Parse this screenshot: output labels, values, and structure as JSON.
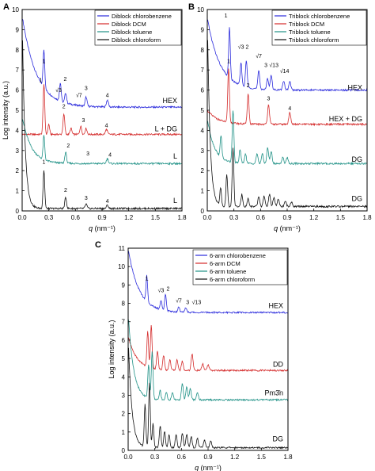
{
  "chart_data": [
    {
      "panel_label": "A",
      "type": "line",
      "xlabel_q": "q",
      "xlabel_unit": " (nm⁻¹)",
      "ylabel": "Log intensity (a.u.)",
      "xlim": [
        0,
        1.8
      ],
      "ylim": [
        0,
        10
      ],
      "xticks": [
        "0.0",
        "0.3",
        "0.6",
        "0.9",
        "1.2",
        "1.5",
        "1.8"
      ],
      "yticks": [
        "0",
        "1",
        "2",
        "3",
        "4",
        "5",
        "6",
        "7",
        "8",
        "9",
        "10"
      ],
      "legend_position": "top-right",
      "series": [
        {
          "name": "Diblock chlorobenzene",
          "color": "#2a2adc",
          "base": 5.15,
          "phase_label": "HEX",
          "start": 9.7,
          "decay": 0.16,
          "peaks": [
            [
              0.245,
              1.9
            ],
            [
              0.43,
              0.9
            ],
            [
              0.49,
              0.5
            ],
            [
              0.72,
              0.45
            ],
            [
              0.96,
              0.35
            ]
          ],
          "annotations": [
            {
              "text": "1",
              "q": 0.245,
              "y": 7.35
            },
            {
              "text": "2",
              "q": 0.485,
              "y": 6.45
            },
            {
              "text": "√3",
              "q": 0.41,
              "y": 5.9
            },
            {
              "text": "√7",
              "q": 0.64,
              "y": 5.65
            },
            {
              "text": "3",
              "q": 0.72,
              "y": 6.0
            },
            {
              "text": "4",
              "q": 0.96,
              "y": 5.65
            }
          ]
        },
        {
          "name": "Diblock DCM",
          "color": "#d42a2a",
          "base": 3.8,
          "phase_label": "L + DG",
          "start": 3.8,
          "decay": 0.1,
          "peaks": [
            [
              0.245,
              2.5
            ],
            [
              0.3,
              0.5
            ],
            [
              0.47,
              1.0
            ],
            [
              0.55,
              0.3
            ],
            [
              0.66,
              0.4
            ],
            [
              0.72,
              0.3
            ],
            [
              0.95,
              0.25
            ]
          ],
          "annotations": [
            {
              "text": "1",
              "q": 0.21,
              "y": 6.4
            },
            {
              "text": "2",
              "q": 0.47,
              "y": 5.1
            },
            {
              "text": "3",
              "q": 0.69,
              "y": 4.4
            },
            {
              "text": "4",
              "q": 0.95,
              "y": 4.15
            }
          ]
        },
        {
          "name": "Diblock toluene",
          "color": "#1f9186",
          "base": 2.35,
          "phase_label": "L",
          "start": 4.7,
          "decay": 0.1,
          "peaks": [
            [
              0.245,
              1.2
            ],
            [
              0.49,
              0.55
            ],
            [
              0.96,
              0.25
            ]
          ],
          "annotations": [
            {
              "text": "2",
              "q": 0.52,
              "y": 3.15
            },
            {
              "text": "3",
              "q": 0.74,
              "y": 2.75
            },
            {
              "text": "4",
              "q": 0.99,
              "y": 2.7
            }
          ]
        },
        {
          "name": "Diblock chloroform",
          "color": "#111111",
          "base": 0.12,
          "phase_label": "L",
          "start": 10.0,
          "decay": 0.03,
          "peaks": [
            [
              0.245,
              1.9
            ],
            [
              0.49,
              0.55
            ],
            [
              0.72,
              0.22
            ],
            [
              0.96,
              0.16
            ]
          ],
          "annotations": [
            {
              "text": "1",
              "q": 0.245,
              "y": 2.35
            },
            {
              "text": "2",
              "q": 0.49,
              "y": 0.95
            },
            {
              "text": "3",
              "q": 0.72,
              "y": 0.55
            },
            {
              "text": "4",
              "q": 0.96,
              "y": 0.4
            }
          ]
        }
      ],
      "phase_label_y": [
        5.35,
        3.95,
        2.6,
        0.4
      ]
    },
    {
      "panel_label": "B",
      "type": "line",
      "xlabel_q": "q",
      "xlabel_unit": " (nm⁻¹)",
      "ylabel": "",
      "xlim": [
        0,
        1.8
      ],
      "ylim": [
        0,
        10
      ],
      "xticks": [
        "0.0",
        "0.3",
        "0.6",
        "0.9",
        "1.2",
        "1.5",
        "1.8"
      ],
      "yticks": [
        "0",
        "1",
        "2",
        "3",
        "4",
        "5",
        "6",
        "7",
        "8",
        "9",
        "10"
      ],
      "legend_position": "top-right",
      "series": [
        {
          "name": "Triblock chlorobenzene",
          "color": "#2a2adc",
          "base": 6.0,
          "phase_label": "HEX",
          "start": 9.6,
          "decay": 0.14,
          "peaks": [
            [
              0.25,
              2.5
            ],
            [
              0.38,
              1.1
            ],
            [
              0.44,
              1.3
            ],
            [
              0.58,
              0.9
            ],
            [
              0.68,
              0.55
            ],
            [
              0.72,
              0.7
            ],
            [
              0.86,
              0.45
            ],
            [
              0.93,
              0.4
            ]
          ],
          "annotations": [
            {
              "text": "1",
              "q": 0.21,
              "y": 9.6
            },
            {
              "text": "√3",
              "q": 0.38,
              "y": 8.05
            },
            {
              "text": "2",
              "q": 0.45,
              "y": 8.05
            },
            {
              "text": "√7",
              "q": 0.58,
              "y": 7.6
            },
            {
              "text": "3",
              "q": 0.66,
              "y": 7.15
            },
            {
              "text": "√13",
              "q": 0.75,
              "y": 7.15
            },
            {
              "text": "√14",
              "q": 0.87,
              "y": 6.85
            }
          ]
        },
        {
          "name": "Triblock DCM",
          "color": "#d42a2a",
          "base": 4.3,
          "phase_label": "HEX + DG",
          "start": 5.0,
          "decay": 0.12,
          "peaks": [
            [
              0.24,
              2.7
            ],
            [
              0.46,
              1.5
            ],
            [
              0.69,
              1.0
            ],
            [
              0.93,
              0.6
            ]
          ],
          "annotations": [
            {
              "text": "1",
              "q": 0.24,
              "y": 7.35
            },
            {
              "text": "2",
              "q": 0.46,
              "y": 6.15
            },
            {
              "text": "3",
              "q": 0.69,
              "y": 5.5
            },
            {
              "text": "4",
              "q": 0.93,
              "y": 5.0
            }
          ]
        },
        {
          "name": "Triblock toluene",
          "color": "#1f9186",
          "base": 2.35,
          "phase_label": "DG",
          "start": 4.6,
          "decay": 0.08,
          "peaks": [
            [
              0.155,
              1.1
            ],
            [
              0.29,
              2.6
            ],
            [
              0.37,
              0.7
            ],
            [
              0.43,
              0.5
            ],
            [
              0.56,
              0.5
            ],
            [
              0.62,
              0.5
            ],
            [
              0.68,
              0.8
            ],
            [
              0.72,
              0.6
            ],
            [
              0.85,
              0.3
            ],
            [
              0.9,
              0.3
            ]
          ],
          "annotations": []
        },
        {
          "name": "Triblock chloroform",
          "color": "#111111",
          "base": 0.22,
          "phase_label": "DG",
          "start": 10.0,
          "decay": 0.03,
          "peaks": [
            [
              0.15,
              0.9
            ],
            [
              0.22,
              1.6
            ],
            [
              0.29,
              2.9
            ],
            [
              0.39,
              0.6
            ],
            [
              0.46,
              0.4
            ],
            [
              0.58,
              0.5
            ],
            [
              0.64,
              0.5
            ],
            [
              0.7,
              0.6
            ],
            [
              0.75,
              0.45
            ],
            [
              0.8,
              0.35
            ],
            [
              0.88,
              0.25
            ],
            [
              0.95,
              0.2
            ]
          ],
          "annotations": []
        }
      ],
      "phase_label_y": [
        6.0,
        4.45,
        2.45,
        0.5
      ]
    },
    {
      "panel_label": "C",
      "type": "line",
      "xlabel_q": "q",
      "xlabel_unit": " (nm⁻¹)",
      "ylabel": "Log intensity (a.u.)",
      "xlim": [
        0,
        1.8
      ],
      "ylim": [
        0,
        11
      ],
      "xticks": [
        "0.0",
        "0.3",
        "0.6",
        "0.9",
        "1.2",
        "1.5",
        "1.8"
      ],
      "yticks": [
        "0",
        "1",
        "2",
        "3",
        "4",
        "5",
        "6",
        "7",
        "8",
        "9",
        "10",
        "11"
      ],
      "legend_position": "top-right",
      "series": [
        {
          "name": "6-arm chlorobenzene",
          "color": "#2a2adc",
          "base": 7.5,
          "phase_label": "HEX",
          "start": 11.0,
          "decay": 0.12,
          "peaks": [
            [
              0.21,
              1.4
            ],
            [
              0.37,
              0.5
            ],
            [
              0.42,
              0.9
            ],
            [
              0.57,
              0.3
            ],
            [
              0.65,
              0.25
            ]
          ],
          "annotations": [
            {
              "text": "1",
              "q": 0.21,
              "y": 9.25
            },
            {
              "text": "√3",
              "q": 0.37,
              "y": 8.6
            },
            {
              "text": "2",
              "q": 0.45,
              "y": 8.7
            },
            {
              "text": "√7",
              "q": 0.57,
              "y": 8.05
            },
            {
              "text": "3",
              "q": 0.67,
              "y": 7.95
            },
            {
              "text": "√13",
              "q": 0.77,
              "y": 7.95
            }
          ]
        },
        {
          "name": "6-arm DCM",
          "color": "#d42a2a",
          "base": 4.35,
          "phase_label": "DD",
          "start": 6.2,
          "decay": 0.1,
          "peaks": [
            [
              0.22,
              1.9
            ],
            [
              0.26,
              2.3
            ],
            [
              0.33,
              1.0
            ],
            [
              0.4,
              0.8
            ],
            [
              0.47,
              0.6
            ],
            [
              0.55,
              0.6
            ],
            [
              0.61,
              0.5
            ],
            [
              0.72,
              0.9
            ],
            [
              0.84,
              0.35
            ],
            [
              0.9,
              0.3
            ]
          ],
          "annotations": []
        },
        {
          "name": "6-arm toluene",
          "color": "#1f9186",
          "base": 2.75,
          "phase_label": "Pm3̄n",
          "start": 7.5,
          "decay": 0.06,
          "peaks": [
            [
              0.23,
              1.8
            ],
            [
              0.27,
              2.6
            ],
            [
              0.36,
              0.5
            ],
            [
              0.43,
              0.4
            ],
            [
              0.5,
              0.4
            ],
            [
              0.61,
              0.9
            ],
            [
              0.66,
              0.7
            ],
            [
              0.7,
              0.6
            ],
            [
              0.78,
              0.4
            ]
          ],
          "annotations": []
        },
        {
          "name": "6-arm chloroform",
          "color": "#111111",
          "base": 0.15,
          "phase_label": "DG",
          "start": 6.3,
          "decay": 0.04,
          "peaks": [
            [
              0.19,
              2.3
            ],
            [
              0.24,
              3.5
            ],
            [
              0.28,
              1.3
            ],
            [
              0.36,
              1.2
            ],
            [
              0.41,
              0.9
            ],
            [
              0.46,
              0.7
            ],
            [
              0.54,
              0.7
            ],
            [
              0.61,
              0.8
            ],
            [
              0.66,
              0.7
            ],
            [
              0.71,
              0.6
            ],
            [
              0.78,
              0.5
            ],
            [
              0.86,
              0.4
            ],
            [
              0.93,
              0.35
            ]
          ],
          "annotations": []
        }
      ],
      "phase_label_y": [
        7.75,
        4.55,
        3.0,
        0.5
      ]
    }
  ]
}
